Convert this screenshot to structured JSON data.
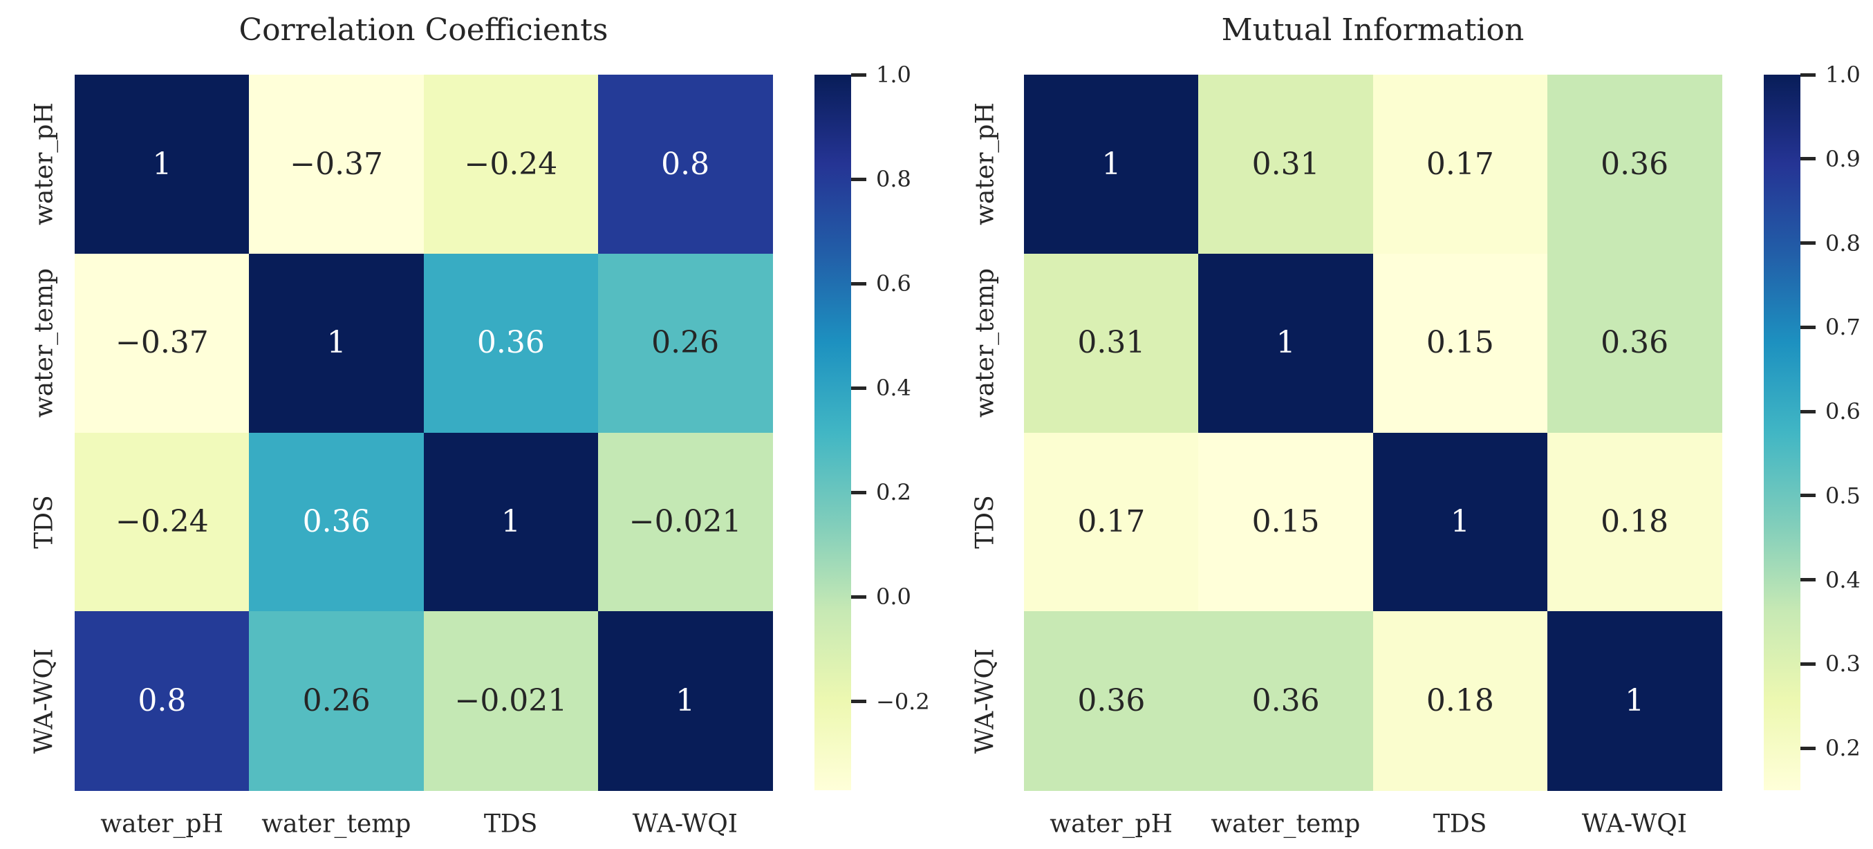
{
  "figure": {
    "background": "#ffffff"
  },
  "colors": {
    "colormap_name": "YlGnBu",
    "ylgnbu_anchors": [
      "#ffffd9",
      "#edf8b1",
      "#c7e9b4",
      "#7fcdbb",
      "#41b6c4",
      "#1d91c0",
      "#225ea8",
      "#253494",
      "#081d58"
    ],
    "dark_text": "#262626",
    "light_text": "#ffffff",
    "tick_color": "#262626"
  },
  "chart_data": [
    {
      "type": "heatmap",
      "title": "Correlation Coefficients",
      "x_categories": [
        "water_pH",
        "water_temp",
        "TDS",
        "WA-WQI"
      ],
      "y_categories": [
        "water_pH",
        "water_temp",
        "TDS",
        "WA-WQI"
      ],
      "matrix": [
        [
          1,
          -0.37,
          -0.24,
          0.8
        ],
        [
          -0.37,
          1,
          0.36,
          0.26
        ],
        [
          -0.24,
          0.36,
          1,
          -0.021
        ],
        [
          0.8,
          0.26,
          -0.021,
          1
        ]
      ],
      "cell_labels": [
        [
          "1",
          "−0.37",
          "−0.24",
          "0.8"
        ],
        [
          "−0.37",
          "1",
          "0.36",
          "0.26"
        ],
        [
          "−0.24",
          "0.36",
          "1",
          "−0.021"
        ],
        [
          "0.8",
          "0.26",
          "−0.021",
          "1"
        ]
      ],
      "colormap": "YlGnBu",
      "vmin": -0.37,
      "vmax": 1.0,
      "grid": false,
      "legend_position": "right-colorbar",
      "colorbar_ticks": [
        {
          "value": 1.0,
          "label": "1.0"
        },
        {
          "value": 0.8,
          "label": "0.8"
        },
        {
          "value": 0.6,
          "label": "0.6"
        },
        {
          "value": 0.4,
          "label": "0.4"
        },
        {
          "value": 0.2,
          "label": "0.2"
        },
        {
          "value": 0.0,
          "label": "0.0"
        },
        {
          "value": -0.2,
          "label": "−0.2"
        }
      ]
    },
    {
      "type": "heatmap",
      "title": "Mutual Information",
      "x_categories": [
        "water_pH",
        "water_temp",
        "TDS",
        "WA-WQI"
      ],
      "y_categories": [
        "water_pH",
        "water_temp",
        "TDS",
        "WA-WQI"
      ],
      "matrix": [
        [
          1,
          0.31,
          0.17,
          0.36
        ],
        [
          0.31,
          1,
          0.15,
          0.36
        ],
        [
          0.17,
          0.15,
          1,
          0.18
        ],
        [
          0.36,
          0.36,
          0.18,
          1
        ]
      ],
      "cell_labels": [
        [
          "1",
          "0.31",
          "0.17",
          "0.36"
        ],
        [
          "0.31",
          "1",
          "0.15",
          "0.36"
        ],
        [
          "0.17",
          "0.15",
          "1",
          "0.18"
        ],
        [
          "0.36",
          "0.36",
          "0.18",
          "1"
        ]
      ],
      "colormap": "YlGnBu",
      "vmin": 0.15,
      "vmax": 1.0,
      "grid": false,
      "legend_position": "right-colorbar",
      "colorbar_ticks": [
        {
          "value": 1.0,
          "label": "1.0"
        },
        {
          "value": 0.9,
          "label": "0.9"
        },
        {
          "value": 0.8,
          "label": "0.8"
        },
        {
          "value": 0.7,
          "label": "0.7"
        },
        {
          "value": 0.6,
          "label": "0.6"
        },
        {
          "value": 0.5,
          "label": "0.5"
        },
        {
          "value": 0.4,
          "label": "0.4"
        },
        {
          "value": 0.3,
          "label": "0.3"
        },
        {
          "value": 0.2,
          "label": "0.2"
        }
      ]
    }
  ]
}
